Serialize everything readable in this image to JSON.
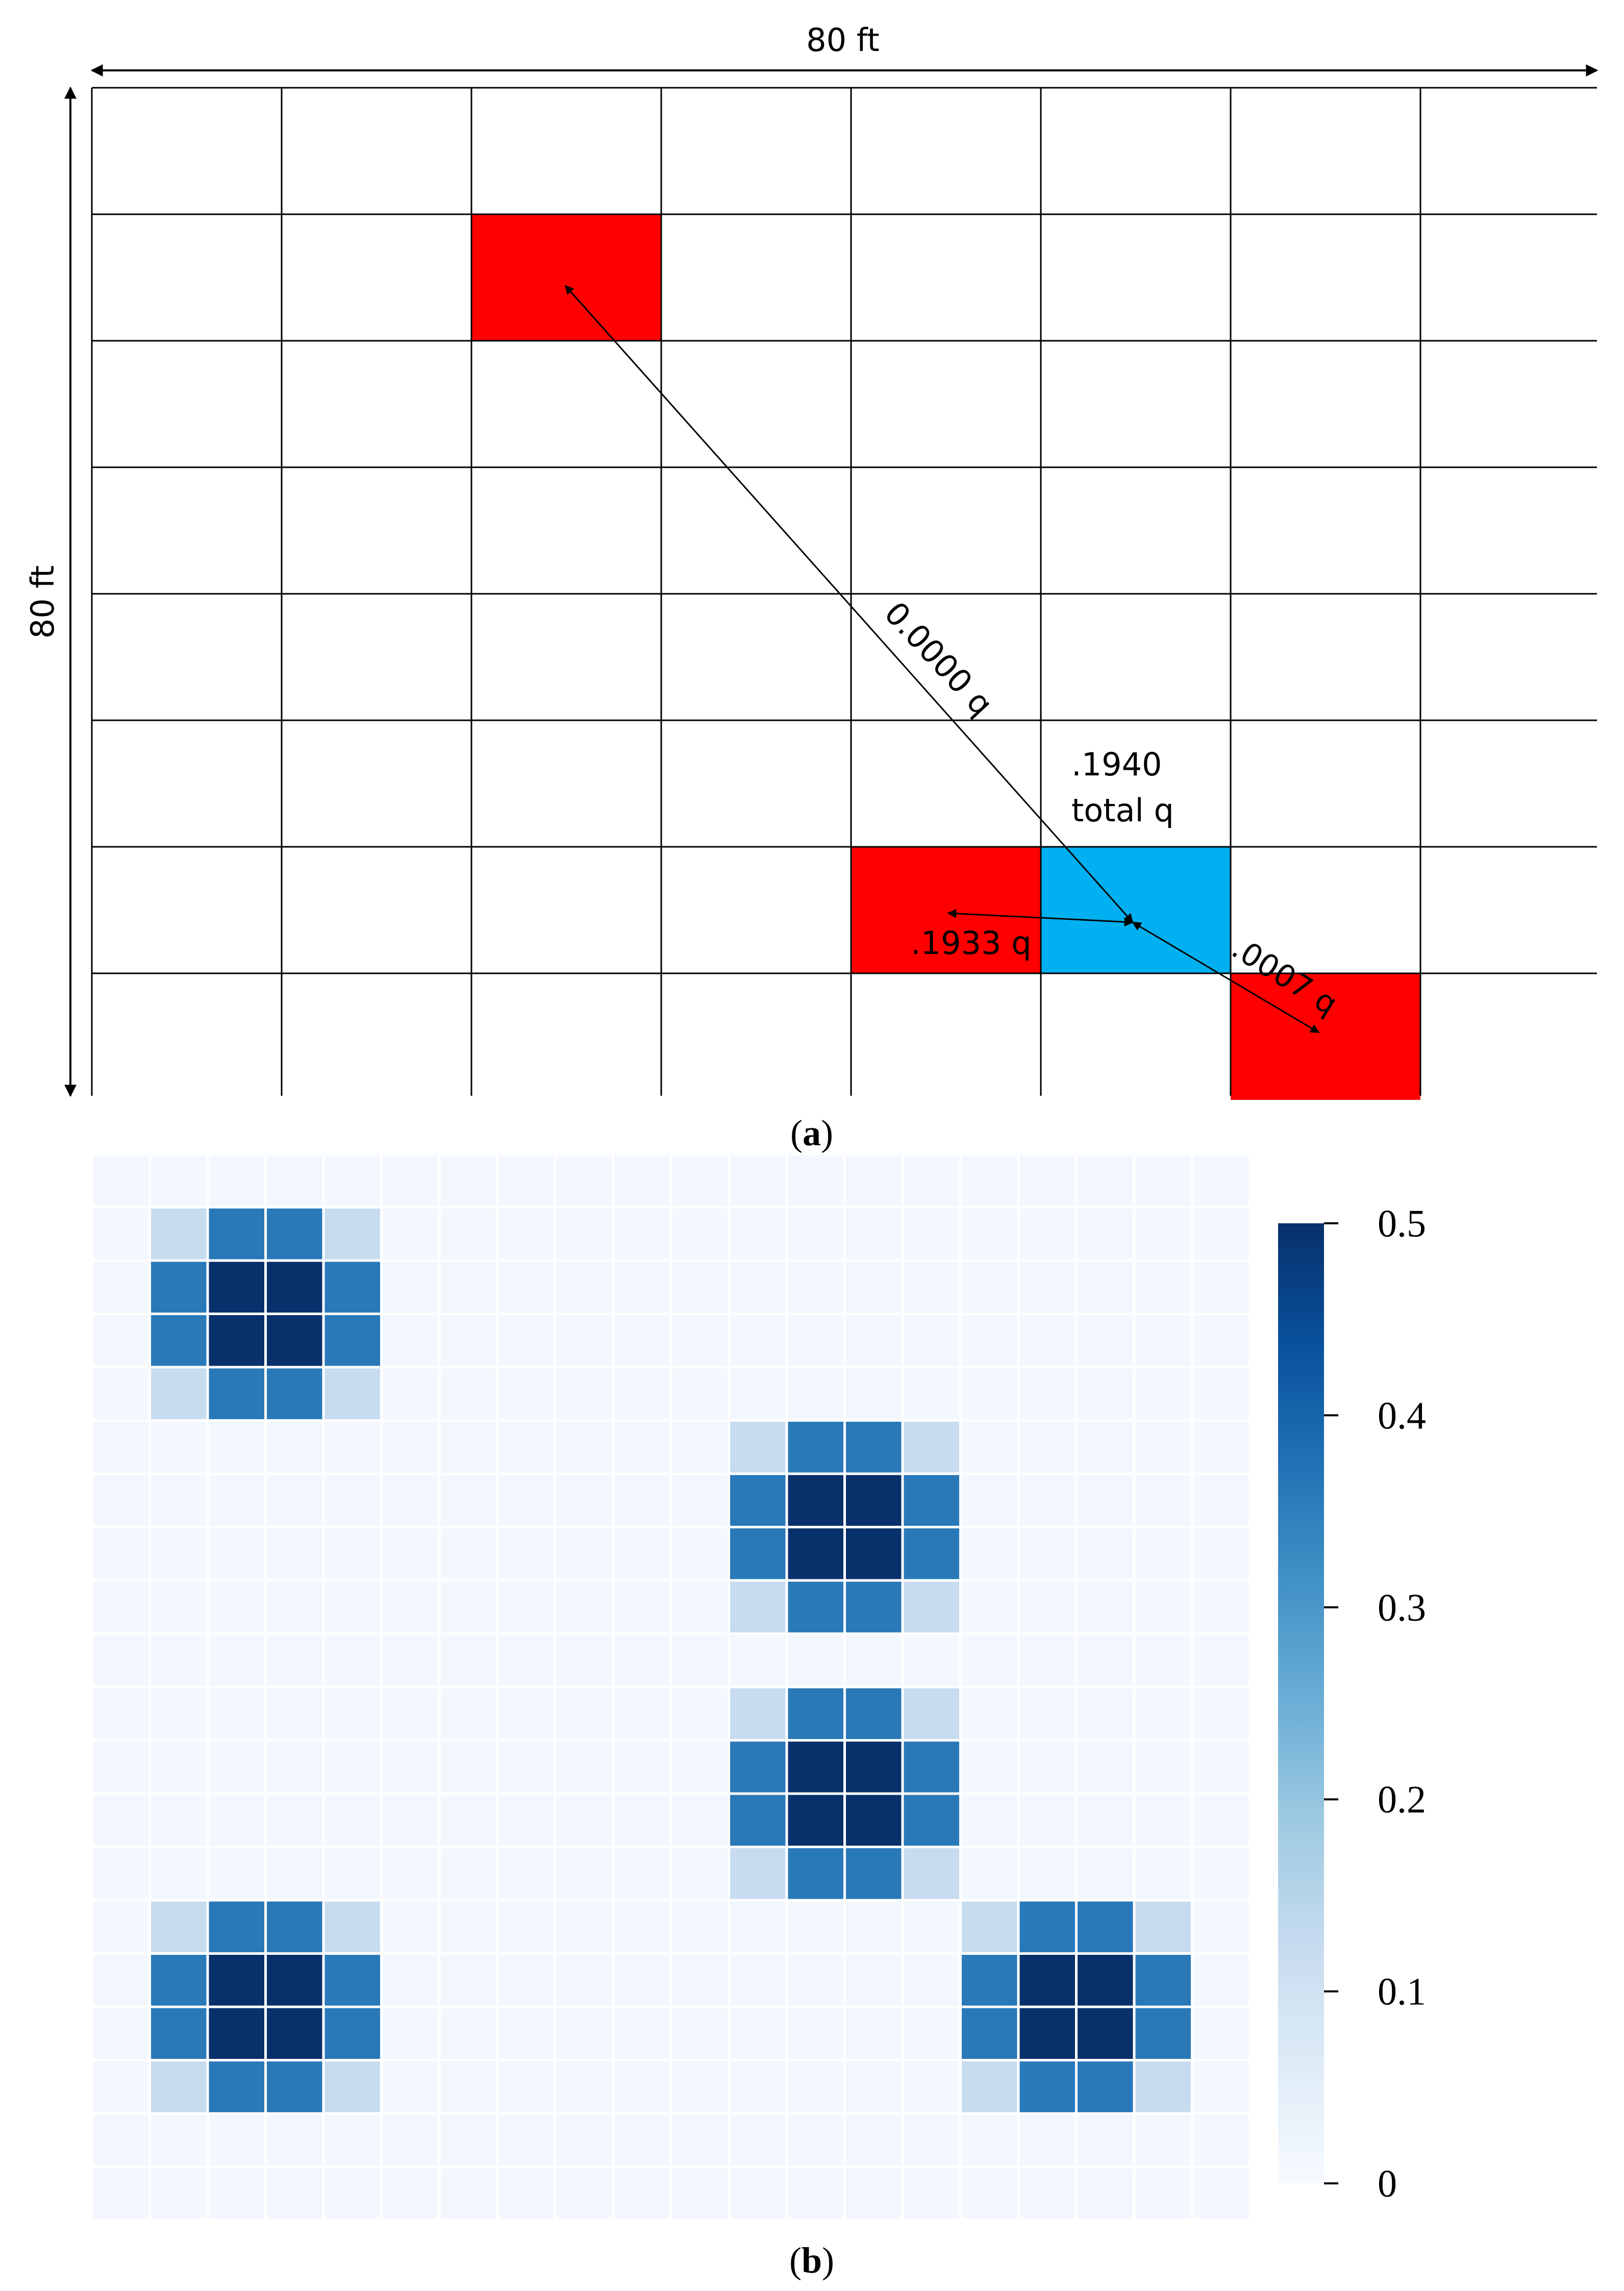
{
  "panel_a": {
    "caption": "a",
    "width_label": "80 ft",
    "height_label": "80 ft",
    "grid": {
      "rows": 8,
      "cols": 8
    },
    "cells": [
      {
        "row": 1,
        "col": 2,
        "color": "#ff0000"
      },
      {
        "row": 6,
        "col": 4,
        "color": "#ff0000"
      },
      {
        "row": 6,
        "col": 5,
        "color": "#00b0f0"
      },
      {
        "row": 7,
        "col": 6,
        "color": "#ff0000"
      }
    ],
    "labels": {
      "far": "0.0000 q",
      "total_value": ".1940",
      "total_unit": "total q",
      "left": ".1933 q",
      "right": ".0007 q"
    }
  },
  "panel_b": {
    "caption": "b",
    "grid": {
      "rows": 20,
      "cols": 20
    },
    "colorbar": {
      "min": 0,
      "max": 0.5,
      "ticks": [
        "0",
        "0.1",
        "0.2",
        "0.3",
        "0.4",
        "0.5"
      ],
      "tick_values": [
        0,
        0.1,
        0.2,
        0.3,
        0.4,
        0.5
      ],
      "stops": [
        "#f7fbff",
        "#deebf7",
        "#c6dbef",
        "#9ecae1",
        "#6baed6",
        "#4292c6",
        "#2171b5",
        "#08519c",
        "#08306b"
      ]
    },
    "background_value": 0.01,
    "hotspot_pattern": [
      [
        0.12,
        0.36,
        0.36,
        0.12
      ],
      [
        0.36,
        0.5,
        0.5,
        0.36
      ],
      [
        0.36,
        0.5,
        0.5,
        0.36
      ],
      [
        0.12,
        0.36,
        0.36,
        0.12
      ]
    ],
    "hotspots": [
      {
        "row": 1,
        "col": 1
      },
      {
        "row": 5,
        "col": 11
      },
      {
        "row": 10,
        "col": 11
      },
      {
        "row": 14,
        "col": 1
      },
      {
        "row": 14,
        "col": 15
      }
    ]
  },
  "chart_data": {
    "type": "heatmap",
    "rows": 20,
    "cols": 20,
    "value_range": [
      0,
      0.5
    ],
    "colorbar_ticks": [
      0,
      0.1,
      0.2,
      0.3,
      0.4,
      0.5
    ],
    "description_of_values": "background cells 0.01; each 4x4 block pattern [[0.12,0.36,0.36,0.12],[0.36,0.5,0.5,0.36],[0.36,0.5,0.5,0.36],[0.12,0.36,0.36,0.12]] at block top-left (row,col)",
    "blocks": [
      [
        1,
        1
      ],
      [
        5,
        11
      ],
      [
        10,
        11
      ],
      [
        14,
        1
      ],
      [
        14,
        15
      ]
    ]
  }
}
